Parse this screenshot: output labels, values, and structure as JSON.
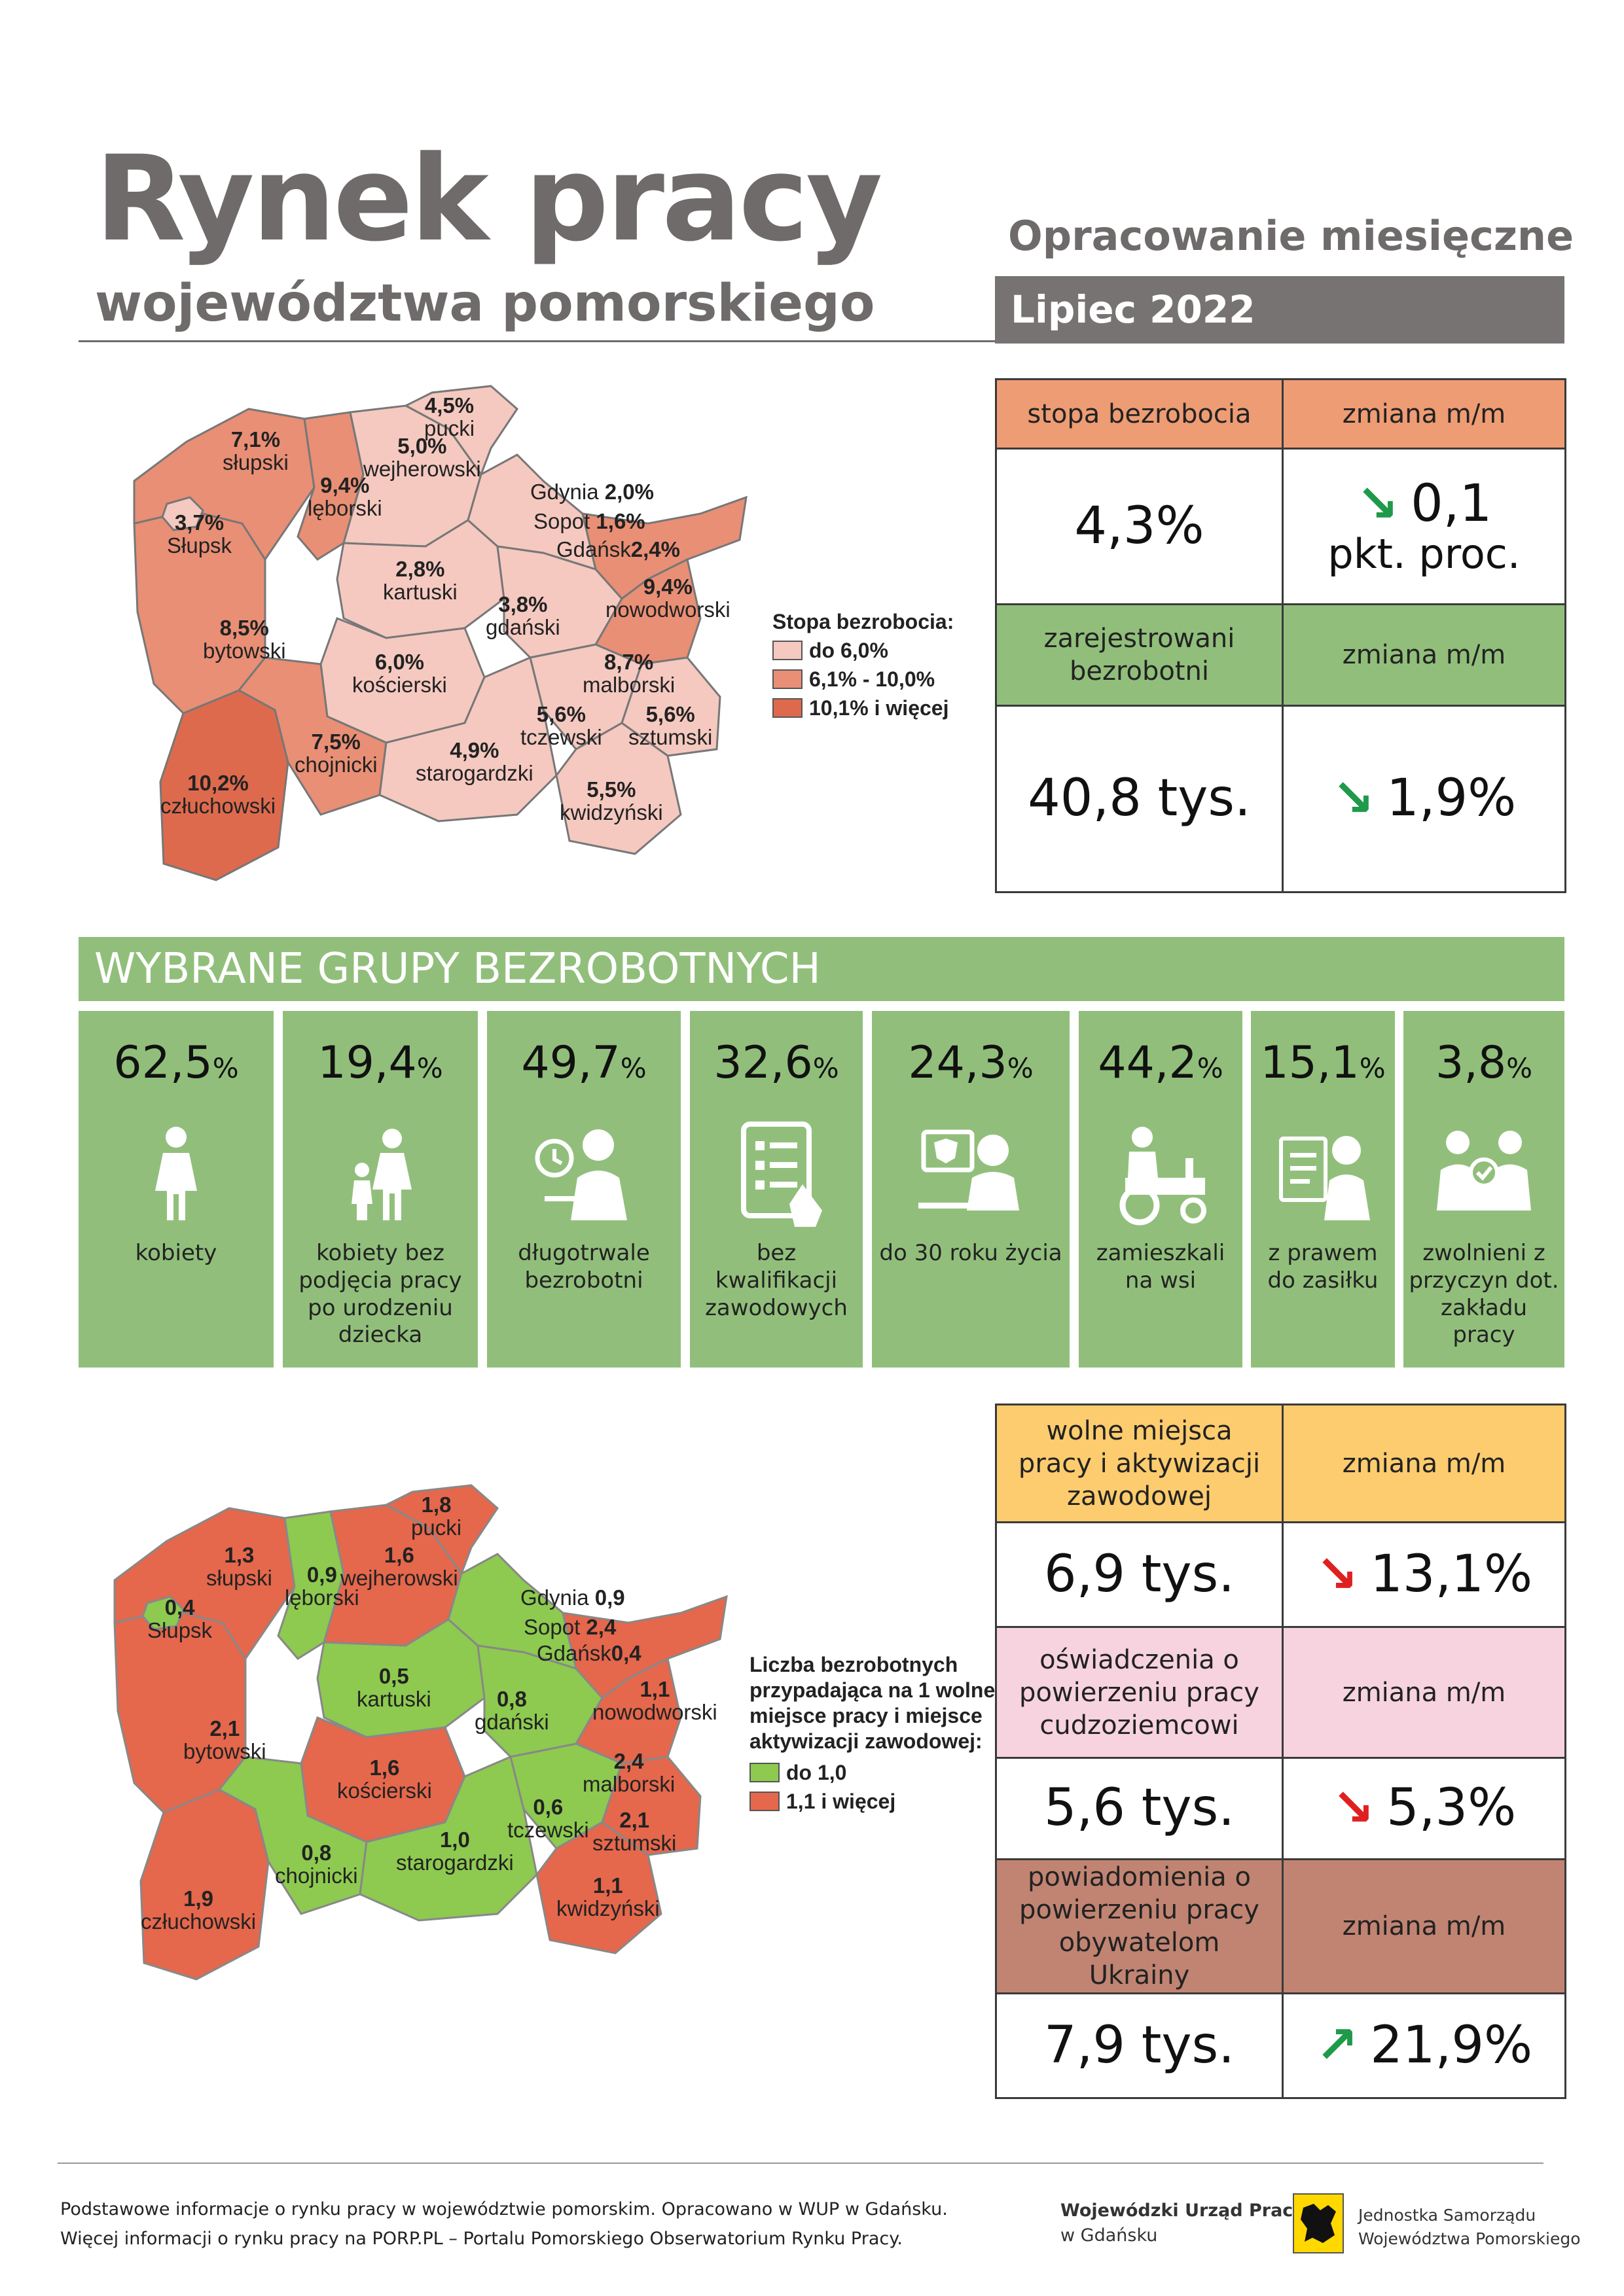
{
  "header": {
    "title": "Rynek pracy",
    "subtitle": "województwa pomorskiego",
    "report_type": "Opracowanie miesięczne",
    "period": "Lipiec 2022"
  },
  "unemployment": {
    "rate_header": "stopa bezrobocia",
    "change_header": "zmiana m/m",
    "rate_value": "4,3%",
    "rate_change": "0,1",
    "rate_change_unit": "pkt. proc.",
    "registered_header": "zarejestrowani bezrobotni",
    "registered_change_header": "zmiana m/m",
    "registered_value": "40,8 tys.",
    "registered_change": "1,9%",
    "trend_down": "down"
  },
  "map_rate": {
    "legend_title": "Stopa bezrobocia:",
    "legend": [
      "do 6,0%",
      "6,1% - 10,0%",
      "10,1% i więcej"
    ],
    "legend_colors": [
      "#f5c9c0",
      "#e98f75",
      "#de6a4e"
    ],
    "regions": {
      "pucki": {
        "value": "4,5%",
        "name": "pucki"
      },
      "slupski": {
        "value": "7,1%",
        "name": "słupski"
      },
      "wejherowski": {
        "value": "5,0%",
        "name": "wejherowski"
      },
      "leborski": {
        "value": "9,4%",
        "name": "lęborski"
      },
      "slupsk": {
        "value": "3,7%",
        "name": "Słupsk"
      },
      "gdynia": {
        "value": "2,0%",
        "name": "Gdynia"
      },
      "sopot": {
        "value": "1,6%",
        "name": "Sopot"
      },
      "gdansk": {
        "value": "2,4%",
        "name": "Gdańsk"
      },
      "kartuski": {
        "value": "2,8%",
        "name": "kartuski"
      },
      "nowodworski": {
        "value": "9,4%",
        "name": "nowodworski"
      },
      "bytowski": {
        "value": "8,5%",
        "name": "bytowski"
      },
      "gdanski": {
        "value": "3,8%",
        "name": "gdański"
      },
      "koscierski": {
        "value": "6,0%",
        "name": "kościerski"
      },
      "malborski": {
        "value": "8,7%",
        "name": "malborski"
      },
      "tczewski": {
        "value": "5,6%",
        "name": "tczewski"
      },
      "sztumski": {
        "value": "5,6%",
        "name": "sztumski"
      },
      "chojnicki": {
        "value": "7,5%",
        "name": "chojnicki"
      },
      "starogardzki": {
        "value": "4,9%",
        "name": "starogardzki"
      },
      "czluchowski": {
        "value": "10,2%",
        "name": "człuchowski"
      },
      "kwidzynski": {
        "value": "5,5%",
        "name": "kwidzyński"
      }
    }
  },
  "groups": {
    "title": "WYBRANE GRUPY BEZROBOTNYCH",
    "percent_sign": "%",
    "items": [
      {
        "value": "62,5",
        "label": "kobiety",
        "icon": "woman-icon"
      },
      {
        "value": "19,4",
        "label": "kobiety bez podjęcia pracy po urodzeniu dziecka",
        "icon": "mother-child-icon"
      },
      {
        "value": "49,7",
        "label": "długotrwale bezrobotni",
        "icon": "clock-person-icon"
      },
      {
        "value": "32,6",
        "label": "bez kwalifikacji zawodowych",
        "icon": "tablet-checklist-icon"
      },
      {
        "value": "24,3",
        "label": "do 30 roku życia",
        "icon": "young-person-computer-icon"
      },
      {
        "value": "44,2",
        "label": "zamieszkali na wsi",
        "icon": "tractor-icon"
      },
      {
        "value": "15,1",
        "label": "z prawem do zasiłku",
        "icon": "document-person-icon"
      },
      {
        "value": "3,8",
        "label": "zwolnieni z przyczyn dot. zakładu pracy",
        "icon": "handshake-people-icon"
      }
    ]
  },
  "offers": {
    "vacancies_header": "wolne miejsca pracy i aktywizacji zawodowej",
    "vacancies_change_header": "zmiana m/m",
    "vacancies_value": "6,9 tys.",
    "vacancies_change": "13,1%",
    "declarations_header": "oświadczenia o powierzeniu pracy cudzoziemcowi",
    "declarations_change_header": "zmiana m/m",
    "declarations_value": "5,6 tys.",
    "declarations_change": "5,3%",
    "ukraine_header": "powiadomienia o powierzeniu pracy obywatelom Ukrainy",
    "ukraine_change_header": "zmiana m/m",
    "ukraine_value": "7,9 tys.",
    "ukraine_change": "21,9%",
    "colors": {
      "yellow": "#fdcc6e",
      "pink": "#f6d3de",
      "brown": "#c18472"
    }
  },
  "map_ratio": {
    "legend_title": "Liczba bezrobotnych przypadająca na 1 wolne miejsce pracy i miejsce aktywizacji zawodowej:",
    "legend": [
      "do 1,0",
      "1,1 i więcej"
    ],
    "legend_colors": [
      "#8dca4f",
      "#e5674c"
    ],
    "regions": {
      "pucki": {
        "value": "1,8",
        "name": "pucki"
      },
      "slupski": {
        "value": "1,3",
        "name": "słupski"
      },
      "wejherowski": {
        "value": "1,6",
        "name": "wejherowski"
      },
      "leborski": {
        "value": "0,9",
        "name": "lęborski"
      },
      "slupsk": {
        "value": "0,4",
        "name": "Słupsk"
      },
      "gdynia": {
        "value": "0,9",
        "name": "Gdynia"
      },
      "sopot": {
        "value": "2,4",
        "name": "Sopot"
      },
      "gdansk": {
        "value": "0,4",
        "name": "Gdańsk"
      },
      "kartuski": {
        "value": "0,5",
        "name": "kartuski"
      },
      "nowodworski": {
        "value": "1,1",
        "name": "nowodworski"
      },
      "bytowski": {
        "value": "2,1",
        "name": "bytowski"
      },
      "gdanski": {
        "value": "0,8",
        "name": "gdański"
      },
      "koscierski": {
        "value": "1,6",
        "name": "kościerski"
      },
      "malborski": {
        "value": "2,4",
        "name": "malborski"
      },
      "tczewski": {
        "value": "0,6",
        "name": "tczewski"
      },
      "sztumski": {
        "value": "2,1",
        "name": "sztumski"
      },
      "chojnicki": {
        "value": "0,8",
        "name": "chojnicki"
      },
      "starogardzki": {
        "value": "1,0",
        "name": "starogardzki"
      },
      "czluchowski": {
        "value": "1,9",
        "name": "człuchowski"
      },
      "kwidzynski": {
        "value": "1,1",
        "name": "kwidzyński"
      }
    }
  },
  "footer": {
    "line1": "Podstawowe informacje o rynku pracy w województwie pomorskim. Opracowano w WUP w Gdańsku.",
    "line2": "Więcej informacji o rynku pracy na PORP.PL – Portalu Pomorskiego Obserwatorium Rynku Pracy.",
    "logo1_line1": "Wojewódzki Urząd Pracy",
    "logo1_line2": "w Gdańsku",
    "logo2_line1": "Jednostka Samorządu",
    "logo2_line2": "Województwa Pomorskiego"
  }
}
